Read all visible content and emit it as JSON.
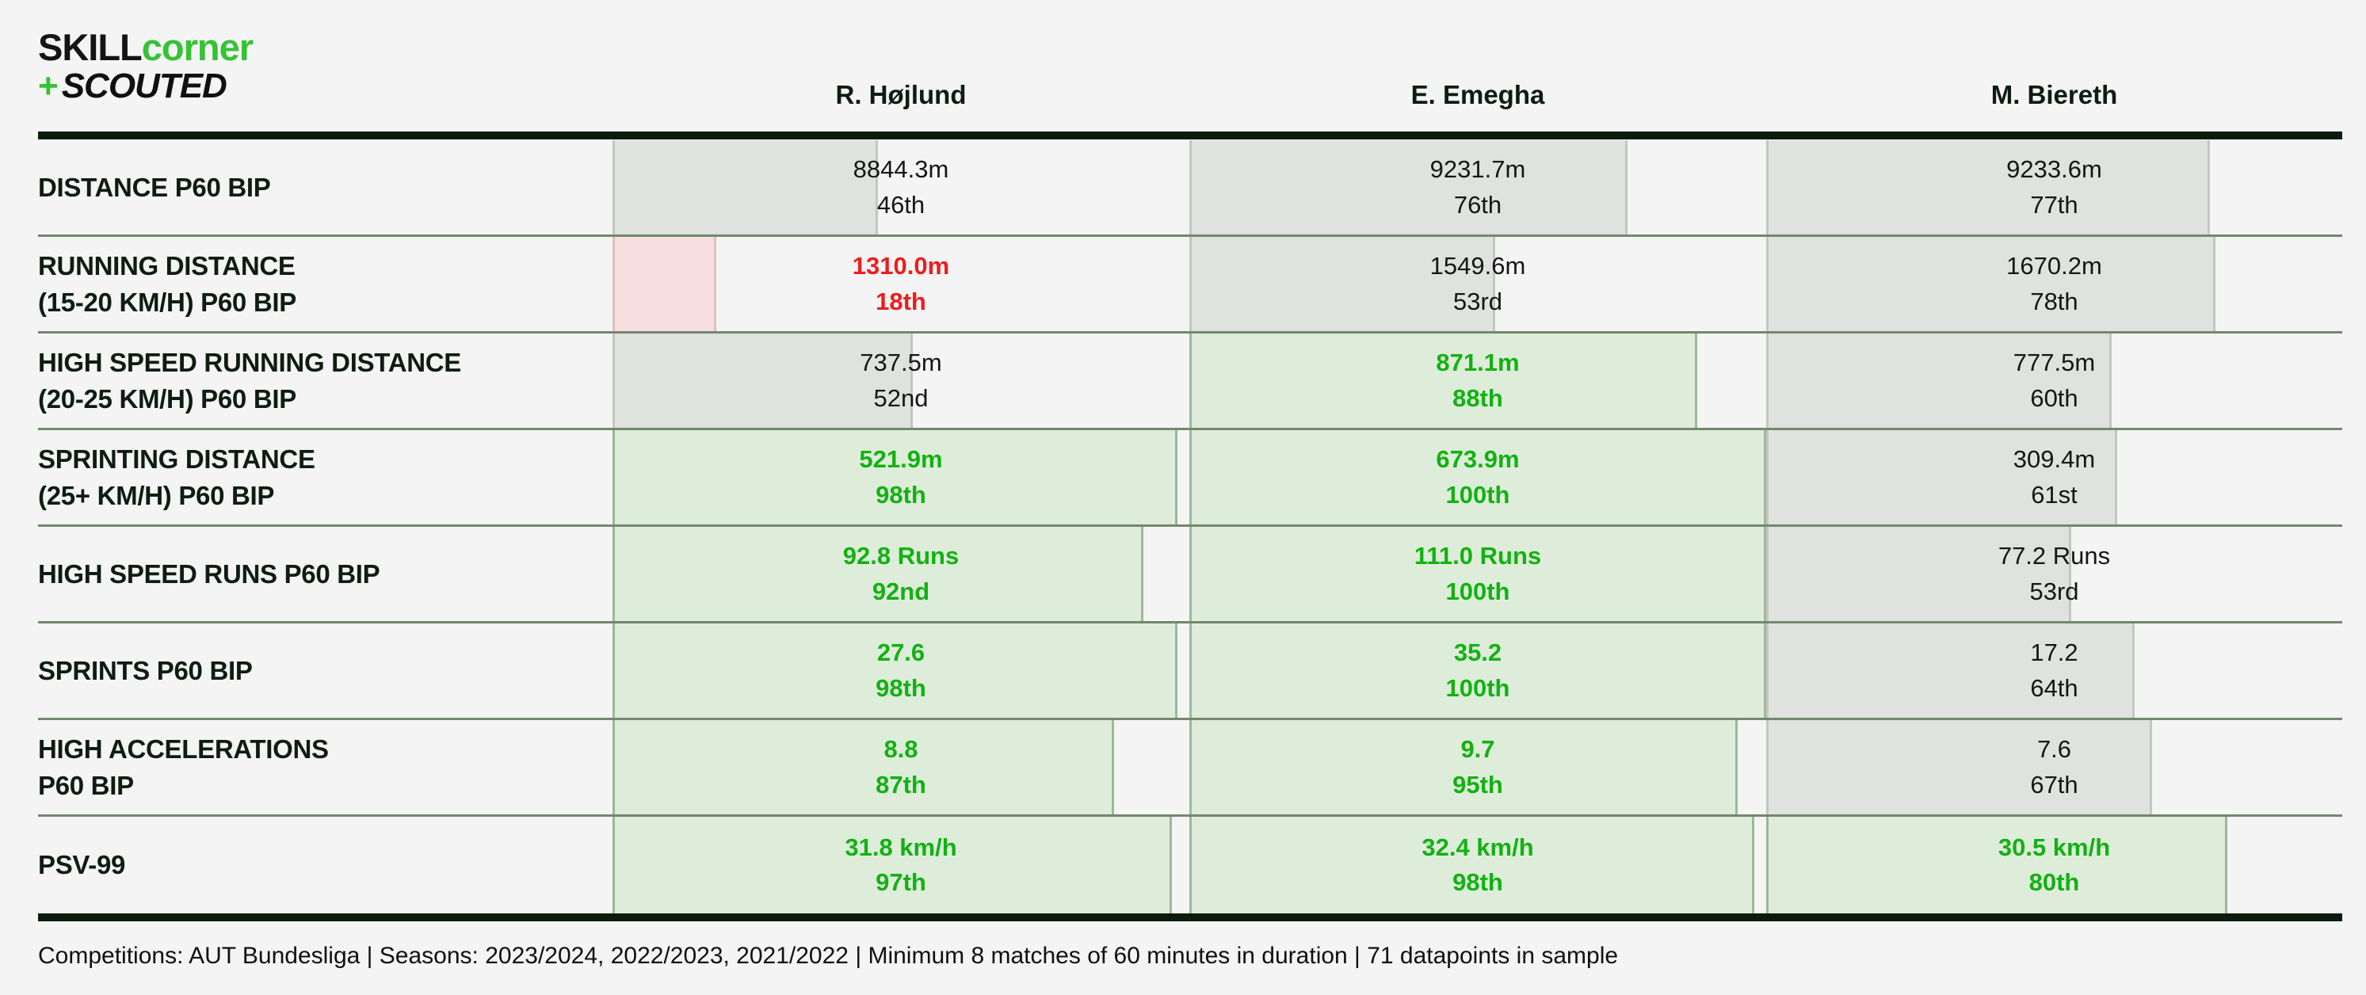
{
  "logo": {
    "skill": "SKILL",
    "corner": "corner",
    "plus": "+",
    "scouted": "SCOUTED"
  },
  "players": [
    "R. Højlund",
    "E. Emegha",
    "M. Biereth"
  ],
  "rows": [
    {
      "label_line1": "DISTANCE P60 BIP",
      "label_line2": "",
      "cells": [
        {
          "value": "8844.3m",
          "percentile_label": "46th",
          "percentile": 46,
          "status": "neutral"
        },
        {
          "value": "9231.7m",
          "percentile_label": "76th",
          "percentile": 76,
          "status": "neutral"
        },
        {
          "value": "9233.6m",
          "percentile_label": "77th",
          "percentile": 77,
          "status": "neutral"
        }
      ]
    },
    {
      "label_line1": "RUNNING DISTANCE",
      "label_line2": "(15-20 KM/H) P60 BIP",
      "cells": [
        {
          "value": "1310.0m",
          "percentile_label": "18th",
          "percentile": 18,
          "status": "bad"
        },
        {
          "value": "1549.6m",
          "percentile_label": "53rd",
          "percentile": 53,
          "status": "neutral"
        },
        {
          "value": "1670.2m",
          "percentile_label": "78th",
          "percentile": 78,
          "status": "neutral"
        }
      ]
    },
    {
      "label_line1": "HIGH SPEED RUNNING DISTANCE",
      "label_line2": "(20-25 KM/H) P60 BIP",
      "cells": [
        {
          "value": "737.5m",
          "percentile_label": "52nd",
          "percentile": 52,
          "status": "neutral"
        },
        {
          "value": "871.1m",
          "percentile_label": "88th",
          "percentile": 88,
          "status": "good"
        },
        {
          "value": "777.5m",
          "percentile_label": "60th",
          "percentile": 60,
          "status": "neutral"
        }
      ]
    },
    {
      "label_line1": "SPRINTING DISTANCE",
      "label_line2": "(25+ KM/H) P60 BIP",
      "cells": [
        {
          "value": "521.9m",
          "percentile_label": "98th",
          "percentile": 98,
          "status": "good"
        },
        {
          "value": "673.9m",
          "percentile_label": "100th",
          "percentile": 100,
          "status": "good"
        },
        {
          "value": "309.4m",
          "percentile_label": "61st",
          "percentile": 61,
          "status": "neutral"
        }
      ]
    },
    {
      "label_line1": "HIGH SPEED RUNS P60 BIP",
      "label_line2": "",
      "cells": [
        {
          "value": "92.8 Runs",
          "percentile_label": "92nd",
          "percentile": 92,
          "status": "good"
        },
        {
          "value": "111.0 Runs",
          "percentile_label": "100th",
          "percentile": 100,
          "status": "good"
        },
        {
          "value": "77.2 Runs",
          "percentile_label": "53rd",
          "percentile": 53,
          "status": "neutral"
        }
      ]
    },
    {
      "label_line1": "SPRINTS P60 BIP",
      "label_line2": "",
      "cells": [
        {
          "value": "27.6",
          "percentile_label": "98th",
          "percentile": 98,
          "status": "good"
        },
        {
          "value": "35.2",
          "percentile_label": "100th",
          "percentile": 100,
          "status": "good"
        },
        {
          "value": "17.2",
          "percentile_label": "64th",
          "percentile": 64,
          "status": "neutral"
        }
      ]
    },
    {
      "label_line1": "HIGH ACCELERATIONS",
      "label_line2": "P60 BIP",
      "cells": [
        {
          "value": "8.8",
          "percentile_label": "87th",
          "percentile": 87,
          "status": "good"
        },
        {
          "value": "9.7",
          "percentile_label": "95th",
          "percentile": 95,
          "status": "good"
        },
        {
          "value": "7.6",
          "percentile_label": "67th",
          "percentile": 67,
          "status": "neutral"
        }
      ]
    },
    {
      "label_line1": "PSV-99",
      "label_line2": "",
      "cells": [
        {
          "value": "31.8 km/h",
          "percentile_label": "97th",
          "percentile": 97,
          "status": "good"
        },
        {
          "value": "32.4 km/h",
          "percentile_label": "98th",
          "percentile": 98,
          "status": "good"
        },
        {
          "value": "30.5 km/h",
          "percentile_label": "80th",
          "percentile": 80,
          "status": "good"
        }
      ]
    }
  ],
  "footer": "Competitions: AUT Bundesliga | Seasons: 2023/2024, 2022/2023, 2021/2022 | Minimum 8 matches of 60 minutes in duration | 71 datapoints in sample",
  "colors": {
    "background": "#f4f4f4",
    "rule_dark": "#0c1b0c",
    "row_separator": "#74876f",
    "label_text": "#0e1c12",
    "neutral_text": "#161616",
    "good_text": "#12b112",
    "bad_text": "#ee1d1d",
    "good_bar": "#deedda",
    "good_bar_border": "#9cb899",
    "neutral_bar": "#dfe2de",
    "neutral_bar_border": "#c3c7c2",
    "bad_bar": "#f6dfde",
    "bad_bar_border": "#ddc2c1",
    "logo_green": "#35c235"
  },
  "chart_data": {
    "type": "table",
    "title": "SKILLCORNER + SCOUTED physical metrics comparison (percentile bars per player)",
    "columns": [
      "R. Højlund",
      "E. Emegha",
      "M. Biereth"
    ],
    "percentile_axis_range": [
      0,
      100
    ],
    "rows": [
      {
        "metric": "DISTANCE P60 BIP",
        "values": [
          "8844.3m",
          "9231.7m",
          "9233.6m"
        ],
        "percentiles": [
          46,
          76,
          77
        ]
      },
      {
        "metric": "RUNNING DISTANCE (15-20 KM/H) P60 BIP",
        "values": [
          "1310.0m",
          "1549.6m",
          "1670.2m"
        ],
        "percentiles": [
          18,
          53,
          78
        ]
      },
      {
        "metric": "HIGH SPEED RUNNING DISTANCE (20-25 KM/H) P60 BIP",
        "values": [
          "737.5m",
          "871.1m",
          "777.5m"
        ],
        "percentiles": [
          52,
          88,
          60
        ]
      },
      {
        "metric": "SPRINTING DISTANCE (25+ KM/H) P60 BIP",
        "values": [
          "521.9m",
          "673.9m",
          "309.4m"
        ],
        "percentiles": [
          98,
          100,
          61
        ]
      },
      {
        "metric": "HIGH SPEED RUNS P60 BIP",
        "values": [
          "92.8 Runs",
          "111.0 Runs",
          "77.2 Runs"
        ],
        "percentiles": [
          92,
          100,
          53
        ]
      },
      {
        "metric": "SPRINTS P60 BIP",
        "values": [
          "27.6",
          "35.2",
          "17.2"
        ],
        "percentiles": [
          98,
          100,
          64
        ]
      },
      {
        "metric": "HIGH ACCELERATIONS P60 BIP",
        "values": [
          "8.8",
          "9.7",
          "7.6"
        ],
        "percentiles": [
          87,
          95,
          67
        ]
      },
      {
        "metric": "PSV-99",
        "values": [
          "31.8 km/h",
          "32.4 km/h",
          "30.5 km/h"
        ],
        "percentiles": [
          97,
          98,
          80
        ]
      }
    ]
  }
}
